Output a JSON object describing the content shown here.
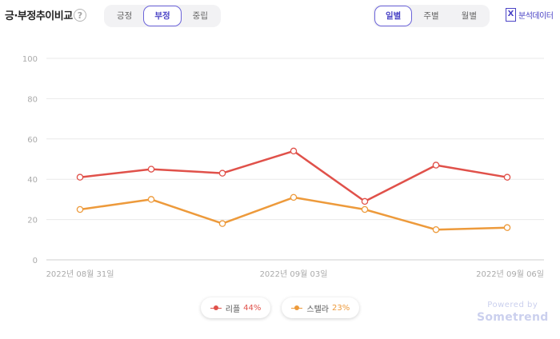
{
  "header": {
    "title": "긍·부정추이비교",
    "help_glyph": "?",
    "sentiment_tabs": [
      "긍정",
      "부정",
      "중립"
    ],
    "sentiment_selected": "부정",
    "period_tabs": [
      "일별",
      "주별",
      "월별"
    ],
    "period_selected": "일별",
    "export_label": "분석데이터",
    "export_glyph": "X"
  },
  "chart_data": {
    "type": "line",
    "x": [
      "2022-08-31",
      "2022-09-01",
      "2022-09-02",
      "2022-09-03",
      "2022-09-04",
      "2022-09-05",
      "2022-09-06"
    ],
    "x_tick_labels": [
      "2022년 08월 31일",
      "2022년 09월 03일",
      "2022년 09월 06일"
    ],
    "x_tick_indices": [
      0,
      3,
      6
    ],
    "y_ticks": [
      0,
      20,
      40,
      60,
      80,
      100
    ],
    "ylim": [
      0,
      100
    ],
    "grid": true,
    "legend_position": "bottom",
    "series": [
      {
        "name": "리플",
        "share": "44%",
        "color": "#e0514a",
        "values": [
          41,
          45,
          43,
          54,
          29,
          47,
          41
        ]
      },
      {
        "name": "스텔라",
        "share": "23%",
        "color": "#ed9a3b",
        "values": [
          25,
          30,
          18,
          31,
          25,
          15,
          16
        ]
      }
    ]
  },
  "watermark": {
    "line1": "Powered by",
    "line2": "Sometrend"
  }
}
